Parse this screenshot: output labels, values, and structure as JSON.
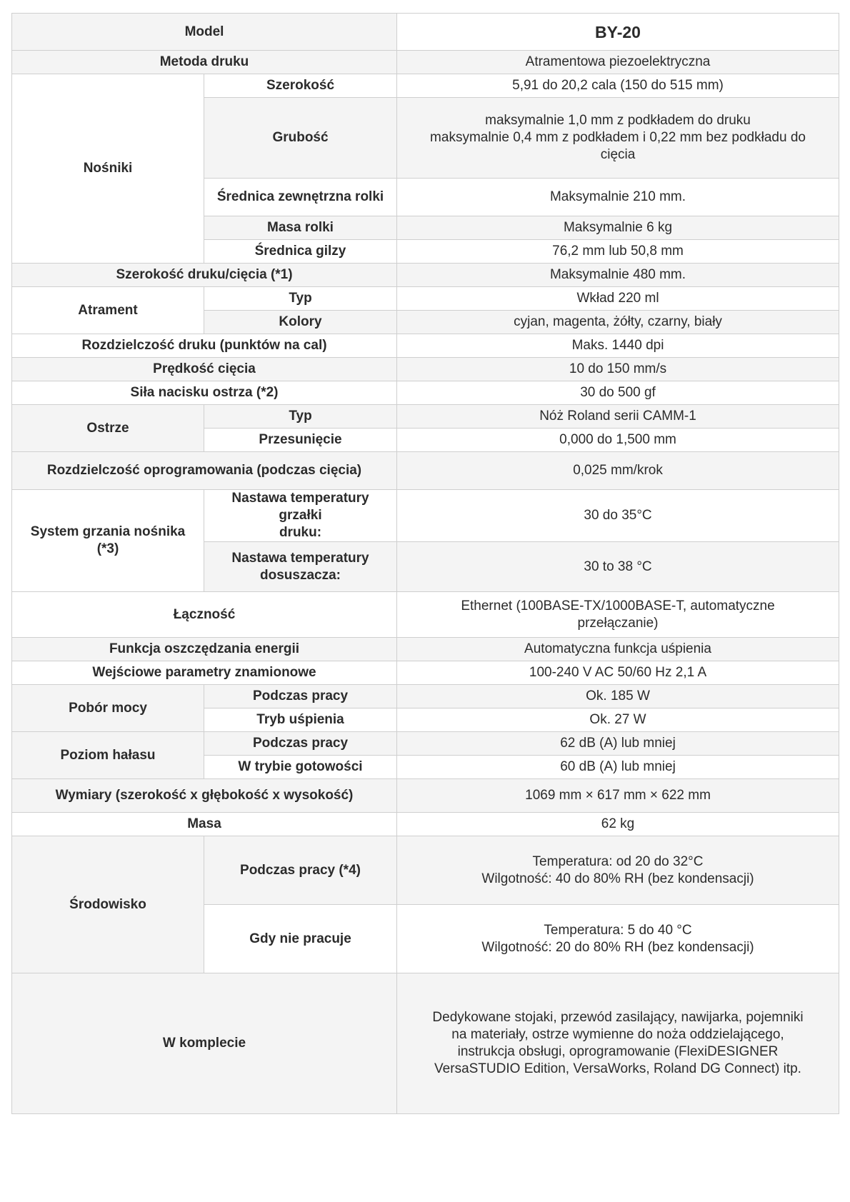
{
  "header": {
    "label": "Model",
    "value": "BY-20"
  },
  "rows": {
    "print_method": {
      "label": "Metoda druku",
      "value": "Atramentowa piezoelektryczna"
    },
    "media": {
      "label": "Nośniki",
      "width": {
        "label": "Szerokość",
        "value": "5,91 do 20,2 cala (150 do 515 mm)"
      },
      "thickness": {
        "label": "Grubość",
        "value_lines": [
          "maksymalnie 1,0 mm z podkładem do druku",
          "maksymalnie 0,4 mm z podkładem i 0,22 mm bez podkładu do",
          "cięcia"
        ]
      },
      "roll_diameter": {
        "label": "Średnica zewnętrzna rolki",
        "value": "Maksymalnie 210 mm."
      },
      "roll_weight": {
        "label": "Masa rolki",
        "value": "Maksymalnie 6 kg"
      },
      "core_diameter": {
        "label": "Średnica gilzy",
        "value": "76,2 mm lub 50,8 mm"
      }
    },
    "print_cut_width": {
      "label": "Szerokość druku/cięcia (*1)",
      "value": "Maksymalnie 480 mm."
    },
    "ink": {
      "label": "Atrament",
      "type": {
        "label": "Typ",
        "value": "Wkład 220 ml"
      },
      "colors": {
        "label": "Kolory",
        "value": "cyjan, magenta, żółty, czarny, biały"
      }
    },
    "print_resolution": {
      "label": "Rozdzielczość druku (punktów na cal)",
      "value": "Maks. 1440 dpi"
    },
    "cutting_speed": {
      "label": "Prędkość cięcia",
      "value": "10 do 150 mm/s"
    },
    "blade_force": {
      "label": "Siła nacisku ostrza (*2)",
      "value": "30 do 500 gf"
    },
    "blade": {
      "label": "Ostrze",
      "type": {
        "label": "Typ",
        "value": "Nóż Roland serii CAMM-1"
      },
      "offset": {
        "label": "Przesunięcie",
        "value": "0,000 do 1,500 mm"
      }
    },
    "software_resolution": {
      "label": "Rozdzielczość oprogramowania (podczas cięcia)",
      "value": "0,025 mm/krok"
    },
    "heating": {
      "label": "System grzania nośnika (*3)",
      "print_heater": {
        "label_lines": [
          "Nastawa temperatury grzałki",
          "druku:"
        ],
        "value": "30 do 35°C"
      },
      "dryer": {
        "label_lines": [
          "Nastawa temperatury",
          "dosuszacza:"
        ],
        "value": "30 to 38 °C"
      }
    },
    "connectivity": {
      "label": "Łączność",
      "value_lines": [
        "Ethernet (100BASE-TX/1000BASE-T, automatyczne",
        "przełączanie)"
      ]
    },
    "power_saving": {
      "label": "Funkcja oszczędzania energii",
      "value": "Automatyczna funkcja uśpienia"
    },
    "power_input": {
      "label": "Wejściowe parametry znamionowe",
      "value": "100-240 V AC 50/60 Hz 2,1 A"
    },
    "power_consumption": {
      "label": "Pobór mocy",
      "operating": {
        "label": "Podczas pracy",
        "value": "Ok. 185 W"
      },
      "sleep": {
        "label": "Tryb uśpienia",
        "value": "Ok. 27 W"
      }
    },
    "noise": {
      "label": "Poziom hałasu",
      "operating": {
        "label": "Podczas pracy",
        "value": "62 dB (A) lub mniej"
      },
      "standby": {
        "label": "W trybie gotowości",
        "value": "60 dB (A) lub mniej"
      }
    },
    "dimensions": {
      "label": "Wymiary (szerokość x głębokość x wysokość)",
      "value": "1069 mm × 617 mm × 622 mm"
    },
    "weight": {
      "label": "Masa",
      "value": "62 kg"
    },
    "environment": {
      "label": "Środowisko",
      "operating": {
        "label": "Podczas pracy (*4)",
        "value_lines": [
          "Temperatura: od 20 do 32°C",
          "Wilgotność: 40 do 80% RH (bez kondensacji)"
        ]
      },
      "not_operating": {
        "label": "Gdy nie pracuje",
        "value_lines": [
          "Temperatura: 5 do 40 °C",
          "Wilgotność: 20 do 80% RH (bez kondensacji)"
        ]
      }
    },
    "included": {
      "label": "W komplecie",
      "value_lines": [
        "Dedykowane stojaki, przewód zasilający, nawijarka, pojemniki",
        "na materiały, ostrze wymienne do noża oddzielającego,",
        "instrukcja obsługi, oprogramowanie (FlexiDESIGNER",
        "VersaSTUDIO Edition, VersaWorks, Roland DG Connect) itp."
      ]
    }
  }
}
